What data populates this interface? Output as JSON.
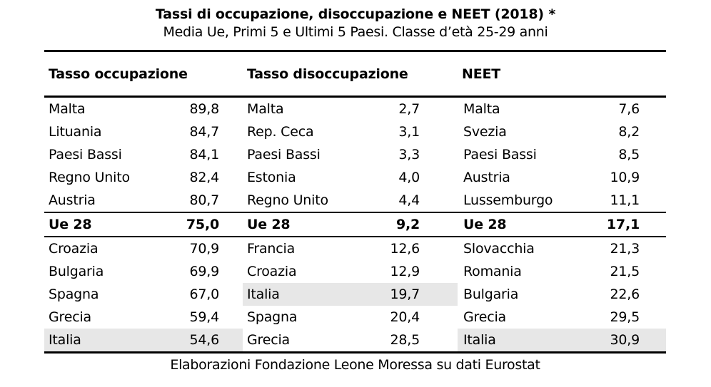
{
  "title": "Tassi di occupazione, disoccupazione e NEET (2018) *",
  "subtitle": "Media Ue, Primi 5 e Ultimi 5 Paesi. Classe d’età 25-29 anni",
  "footer": "Elaborazioni Fondazione Leone Moressa su dati Eurostat",
  "colors": {
    "text": "#000000",
    "rule": "#000000",
    "highlight": "#e7e7e7"
  },
  "chart_data": {
    "type": "table",
    "value_format": "percent, comma decimal",
    "age_class": "25-29 anni",
    "year": "2018",
    "groups": [
      {
        "header": "Tasso occupazione",
        "rows": [
          {
            "country": "Malta",
            "value": "89,8"
          },
          {
            "country": "Lituania",
            "value": "84,7"
          },
          {
            "country": "Paesi Bassi",
            "value": "84,1"
          },
          {
            "country": "Regno Unito",
            "value": "82,4"
          },
          {
            "country": "Austria",
            "value": "80,7"
          },
          {
            "country": "Ue 28",
            "value": "75,0",
            "bold": true
          },
          {
            "country": "Croazia",
            "value": "70,9"
          },
          {
            "country": "Bulgaria",
            "value": "69,9"
          },
          {
            "country": "Spagna",
            "value": "67,0"
          },
          {
            "country": "Grecia",
            "value": "59,4"
          },
          {
            "country": "Italia",
            "value": "54,6",
            "highlight": true
          }
        ]
      },
      {
        "header": "Tasso disoccupazione",
        "rows": [
          {
            "country": "Malta",
            "value": "2,7"
          },
          {
            "country": "Rep. Ceca",
            "value": "3,1"
          },
          {
            "country": "Paesi Bassi",
            "value": "3,3"
          },
          {
            "country": "Estonia",
            "value": "4,0"
          },
          {
            "country": "Regno Unito",
            "value": "4,4"
          },
          {
            "country": "Ue 28",
            "value": "9,2",
            "bold": true
          },
          {
            "country": "Francia",
            "value": "12,6"
          },
          {
            "country": "Croazia",
            "value": "12,9"
          },
          {
            "country": "Italia",
            "value": "19,7",
            "highlight": true
          },
          {
            "country": "Spagna",
            "value": "20,4"
          },
          {
            "country": "Grecia",
            "value": "28,5"
          }
        ]
      },
      {
        "header": "NEET",
        "rows": [
          {
            "country": "Malta",
            "value": "7,6"
          },
          {
            "country": "Svezia",
            "value": "8,2"
          },
          {
            "country": "Paesi Bassi",
            "value": "8,5"
          },
          {
            "country": "Austria",
            "value": "10,9"
          },
          {
            "country": "Lussemburgo",
            "value": "11,1"
          },
          {
            "country": "Ue 28",
            "value": "17,1",
            "bold": true
          },
          {
            "country": "Slovacchia",
            "value": "21,3"
          },
          {
            "country": "Romania",
            "value": "21,5"
          },
          {
            "country": "Bulgaria",
            "value": "22,6"
          },
          {
            "country": "Grecia",
            "value": "29,5"
          },
          {
            "country": "Italia",
            "value": "30,9",
            "highlight": true
          }
        ]
      }
    ]
  }
}
